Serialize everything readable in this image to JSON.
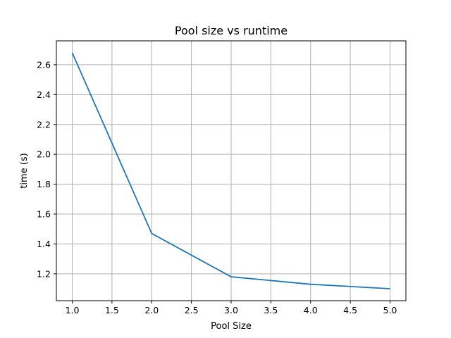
{
  "chart_data": {
    "type": "line",
    "title": "Pool size vs runtime",
    "xlabel": "Pool Size",
    "ylabel": "time (s)",
    "x": [
      1.0,
      2.0,
      3.0,
      4.0,
      5.0
    ],
    "series": [
      {
        "values": [
          2.68,
          1.47,
          1.18,
          1.13,
          1.1
        ],
        "color": "#1f77b4"
      }
    ],
    "xlim": [
      0.8,
      5.2
    ],
    "ylim": [
      1.02,
      2.76
    ],
    "xticks": [
      1.0,
      1.5,
      2.0,
      2.5,
      3.0,
      3.5,
      4.0,
      4.5,
      5.0
    ],
    "xtick_labels": [
      "1.0",
      "1.5",
      "2.0",
      "2.5",
      "3.0",
      "3.5",
      "4.0",
      "4.5",
      "5.0"
    ],
    "yticks": [
      1.2,
      1.4,
      1.6,
      1.8,
      2.0,
      2.2,
      2.4,
      2.6
    ],
    "ytick_labels": [
      "1.2",
      "1.4",
      "1.6",
      "1.8",
      "2.0",
      "2.2",
      "2.4",
      "2.6"
    ],
    "grid": true,
    "grid_color": "#b0b0b0",
    "legend": false
  }
}
